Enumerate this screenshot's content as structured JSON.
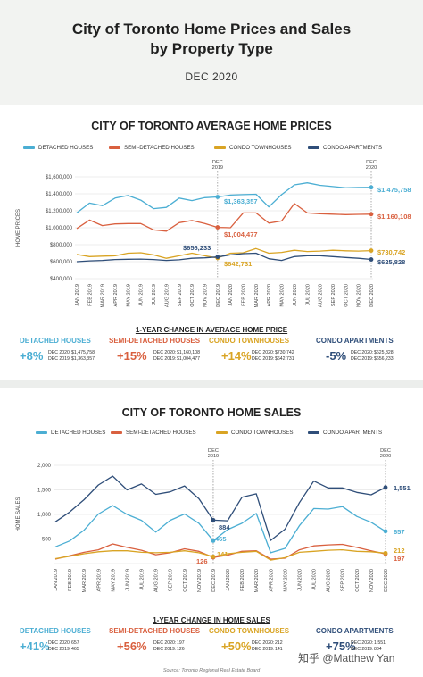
{
  "header": {
    "title_line1": "City of Toronto Home Prices and Sales",
    "title_line2": "by Property Type",
    "date": "DEC 2020"
  },
  "colors": {
    "detached": "#4baed3",
    "semi": "#d9603f",
    "condo_town": "#d9a424",
    "condo_apt": "#2f4e79"
  },
  "prices": {
    "title": "CITY OF TORONTO AVERAGE HOME PRICES",
    "legend": [
      "DETACHED HOUSES",
      "SEMI-DETACHED HOUSES",
      "CONDO TOWNHOUSES",
      "CONDO APARTMENTS"
    ],
    "change_title": "1-YEAR CHANGE IN AVERAGE HOME PRICE",
    "changes": [
      {
        "name": "DETACHED HOUSES",
        "pct": "+8%",
        "l1": "DEC 2020:",
        "v1": "$1,475,758",
        "l2": "DEC 2019:",
        "v2": "$1,363,357"
      },
      {
        "name": "SEMI-DETACHED HOUSES",
        "pct": "+15%",
        "l1": "DEC 2020:",
        "v1": "$1,160,108",
        "l2": "DEC 2019:",
        "v2": "$1,004,477"
      },
      {
        "name": "CONDO TOWNHOUSES",
        "pct": "+14%",
        "l1": "DEC 2020:",
        "v1": "$730,742",
        "l2": "DEC 2019:",
        "v2": "$642,731"
      },
      {
        "name": "CONDO APARTMENTS",
        "pct": "-5%",
        "l1": "DEC 2020:",
        "v1": "$625,828",
        "l2": "DEC 2019:",
        "v2": "$656,233"
      }
    ]
  },
  "sales": {
    "title": "CITY OF TORONTO HOME SALES",
    "legend": [
      "DETACHED HOUSES",
      "SEMI-DETACHED HOUSES",
      "CONDO TOWNHOUSES",
      "CONDO APARTMENTS"
    ],
    "change_title": "1-YEAR CHANGE IN HOME SALES",
    "changes": [
      {
        "name": "DETACHED HOUSES",
        "pct": "+41%",
        "l1": "DEC 2020:",
        "v1": "657",
        "l2": "DEC 2019:",
        "v2": "465"
      },
      {
        "name": "SEMI-DETACHED HOUSES",
        "pct": "+56%",
        "l1": "DEC 2020:",
        "v1": "197",
        "l2": "DEC 2019:",
        "v2": "126"
      },
      {
        "name": "CONDO TOWNHOUSES",
        "pct": "+50%",
        "l1": "DEC 2020:",
        "v1": "212",
        "l2": "DEC 2019:",
        "v2": "141"
      },
      {
        "name": "CONDO APARTMENTS",
        "pct": "+75%",
        "l1": "DEC 2020:",
        "v1": "1,551",
        "l2": "DEC 2019:",
        "v2": "884"
      }
    ]
  },
  "source": "Source: Toronto Regional Real Estate Board",
  "watermark": "知乎 @Matthew Yan",
  "chart_data": [
    {
      "type": "line",
      "title": "CITY OF TORONTO AVERAGE HOME PRICES",
      "xlabel": "",
      "ylabel": "HOME PRICES",
      "categories": [
        "JAN 2019",
        "FEB 2019",
        "MAR 2019",
        "APR 2019",
        "MAY 2019",
        "JUN 2019",
        "JUL 2019",
        "AUG 2019",
        "SEP 2019",
        "OCT 2019",
        "NOV 2019",
        "DEC 2019",
        "JAN 2020",
        "FEB 2020",
        "MAR 2020",
        "APR 2020",
        "MAY 2020",
        "JUN 2020",
        "JUL 2020",
        "AUG 2020",
        "SEP 2020",
        "OCT 2020",
        "NOV 2020",
        "DEC 2020"
      ],
      "yticks": [
        "$400,000",
        "$600,000",
        "$800,000",
        "$1,000,000",
        "$1,200,000",
        "$1,400,000",
        "$1,600,000"
      ],
      "ylim": [
        400000,
        1600000
      ],
      "markers": [
        "DEC 2019",
        "DEC 2020"
      ],
      "grid": true,
      "legend_position": "top",
      "series": [
        {
          "name": "DETACHED HOUSES",
          "values": [
            1175000,
            1290000,
            1260000,
            1350000,
            1380000,
            1325000,
            1225000,
            1240000,
            1350000,
            1320000,
            1355000,
            1363357,
            1385000,
            1390000,
            1395000,
            1245000,
            1390000,
            1505000,
            1530000,
            1500000,
            1485000,
            1470000,
            1475000,
            1475758
          ]
        },
        {
          "name": "SEMI-DETACHED HOUSES",
          "values": [
            990000,
            1090000,
            1025000,
            1045000,
            1050000,
            1050000,
            975000,
            960000,
            1060000,
            1085000,
            1050000,
            1004477,
            1000000,
            1175000,
            1175000,
            1055000,
            1080000,
            1285000,
            1175000,
            1165000,
            1160000,
            1155000,
            1158000,
            1160108
          ]
        },
        {
          "name": "CONDO TOWNHOUSES",
          "values": [
            685000,
            660000,
            665000,
            670000,
            700000,
            705000,
            680000,
            640000,
            670000,
            700000,
            670000,
            642731,
            700000,
            705000,
            755000,
            700000,
            710000,
            735000,
            720000,
            725000,
            735000,
            728000,
            725000,
            730742
          ]
        },
        {
          "name": "CONDO APARTMENTS",
          "values": [
            600000,
            610000,
            615000,
            625000,
            628000,
            630000,
            625000,
            615000,
            622000,
            640000,
            645000,
            656233,
            680000,
            695000,
            700000,
            635000,
            615000,
            660000,
            670000,
            670000,
            660000,
            650000,
            640000,
            625828
          ]
        }
      ],
      "annotations": [
        "$1,363,357",
        "$1,004,477",
        "$656,233",
        "$642,731",
        "$1,475,758",
        "$1,160,108",
        "$730,742",
        "$625,828"
      ]
    },
    {
      "type": "line",
      "title": "CITY OF TORONTO HOME SALES",
      "xlabel": "",
      "ylabel": "HOME SALES",
      "categories": [
        "JAN 2019",
        "FEB 2019",
        "MAR 2019",
        "APR 2019",
        "MAY 2019",
        "JUN 2019",
        "JUL 2019",
        "AUG 2019",
        "SEP 2019",
        "OCT 2019",
        "NOV 2019",
        "DEC 2019",
        "JAN 2020",
        "FEB 2020",
        "MAR 2020",
        "APR 2020",
        "MAY 2020",
        "JUN 2020",
        "JUL 2020",
        "AUG 2020",
        "SEP 2020",
        "OCT 2020",
        "NOV 2020",
        "DEC 2020"
      ],
      "yticks": [
        "-",
        "500",
        "1,000",
        "1,500",
        "2,000"
      ],
      "ylim": [
        0,
        2000
      ],
      "markers": [
        "DEC 2019",
        "DEC 2020"
      ],
      "grid": true,
      "legend_position": "top",
      "series": [
        {
          "name": "DETACHED HOUSES",
          "values": [
            340,
            460,
            680,
            1010,
            1180,
            1000,
            880,
            640,
            880,
            1010,
            820,
            465,
            690,
            820,
            1020,
            220,
            310,
            770,
            1120,
            1110,
            1160,
            960,
            840,
            657
          ]
        },
        {
          "name": "SEMI-DETACHED HOUSES",
          "values": [
            90,
            160,
            230,
            280,
            400,
            330,
            270,
            180,
            220,
            300,
            250,
            126,
            170,
            250,
            260,
            90,
            110,
            280,
            360,
            380,
            390,
            330,
            260,
            197
          ]
        },
        {
          "name": "CONDO TOWNHOUSES",
          "values": [
            100,
            150,
            200,
            240,
            260,
            260,
            230,
            220,
            230,
            260,
            220,
            141,
            200,
            230,
            250,
            70,
            120,
            230,
            250,
            270,
            280,
            250,
            240,
            212
          ]
        },
        {
          "name": "CONDO APARTMENTS",
          "values": [
            850,
            1050,
            1300,
            1600,
            1780,
            1500,
            1620,
            1410,
            1460,
            1580,
            1320,
            884,
            870,
            1350,
            1420,
            470,
            700,
            1240,
            1680,
            1540,
            1540,
            1450,
            1400,
            1551
          ]
        }
      ],
      "annotations": [
        "884",
        "465",
        "141",
        "126",
        "1,551",
        "657",
        "212",
        "197"
      ]
    }
  ]
}
